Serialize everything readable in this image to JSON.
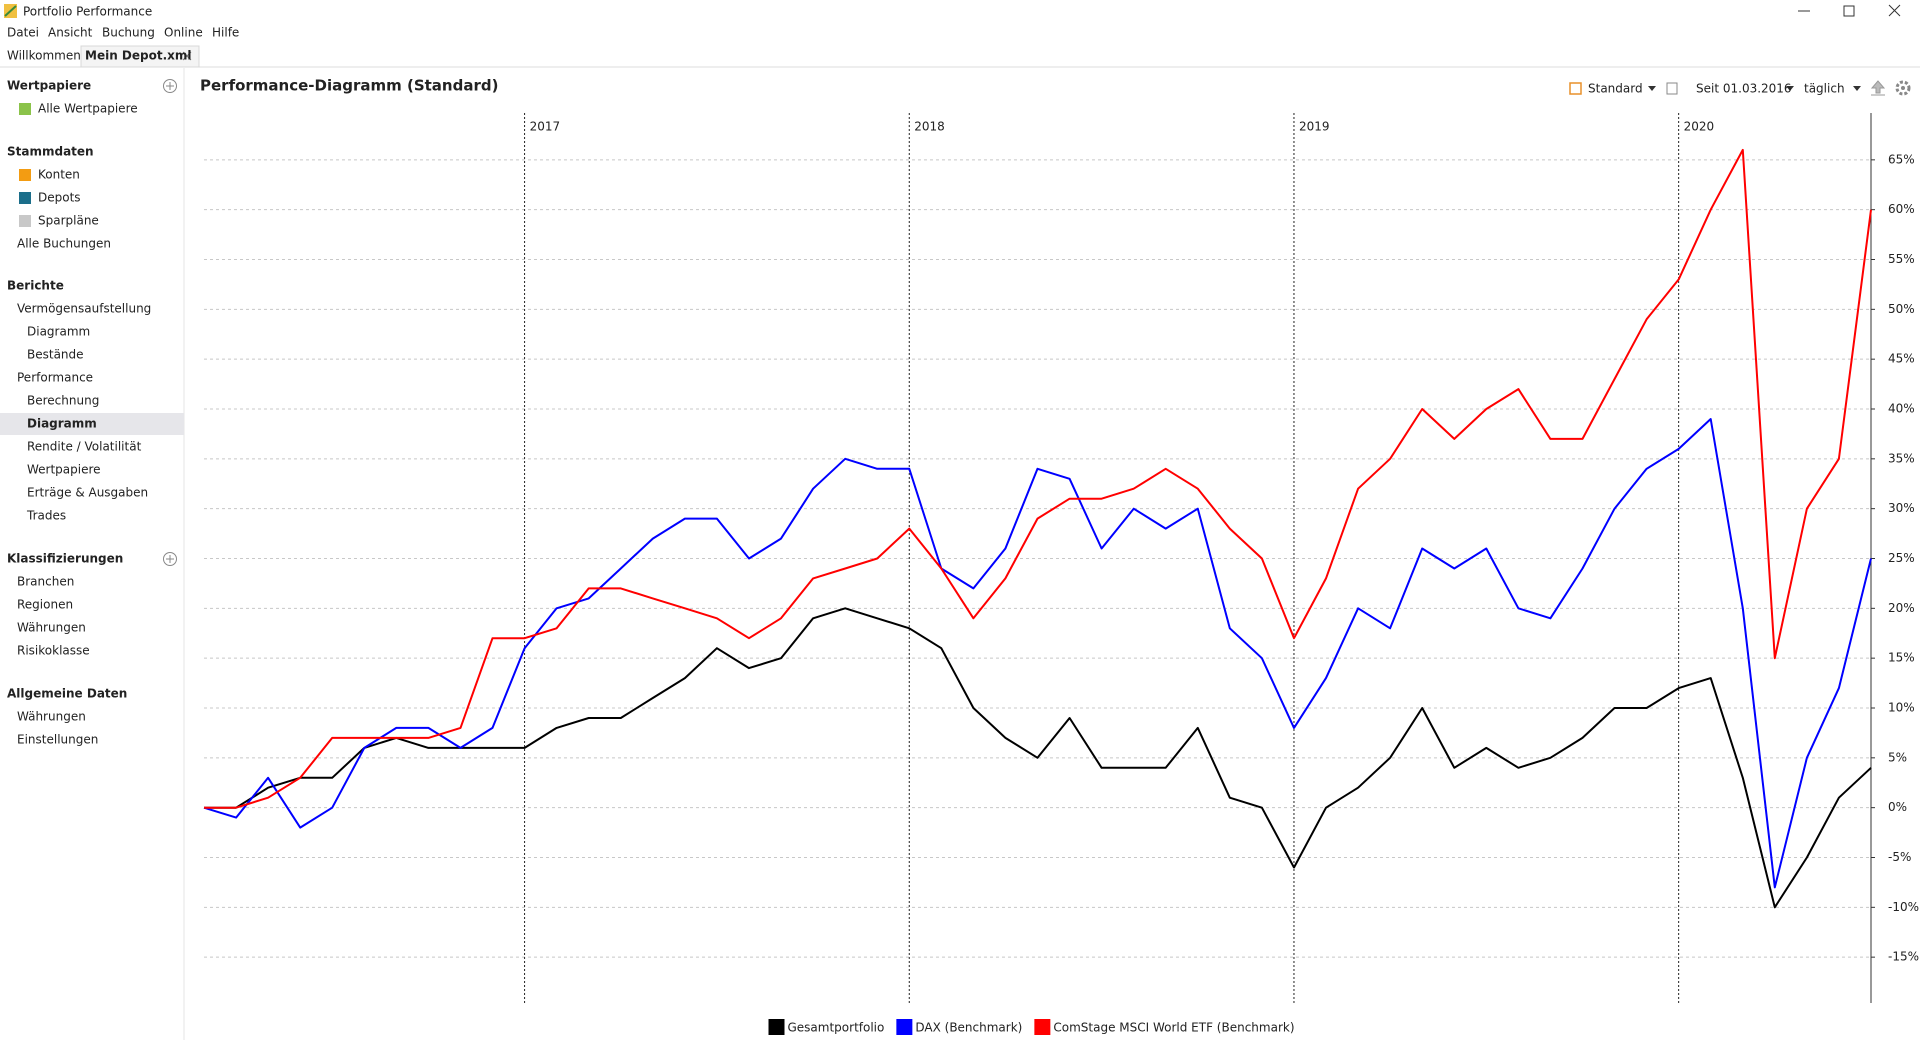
{
  "app": {
    "title": "Portfolio Performance",
    "menu": [
      "Datei",
      "Ansicht",
      "Buchung",
      "Online",
      "Hilfe"
    ],
    "tabs": [
      "Willkommen",
      "Mein Depot.xml"
    ],
    "sidebar": [
      {
        "title": "Wertpapiere",
        "items": [
          "Alle Wertpapiere"
        ]
      },
      {
        "title": "Stammdaten",
        "items": [
          "Konten",
          "Depots",
          "Sparpläne",
          "Alle Buchungen"
        ]
      },
      {
        "title": "Berichte",
        "items": [
          "Vermögensaufstellung",
          "Diagramm",
          "Bestände",
          "Performance",
          "Berechnung",
          "Diagramm",
          "Rendite / Volatilität",
          "Wertpapiere",
          "Erträge & Ausgaben",
          "Trades"
        ]
      },
      {
        "title": "Klassifizierungen",
        "items": [
          "Branchen",
          "Regionen",
          "Währungen",
          "Risikoklasse"
        ]
      },
      {
        "title": "Allgemeine Daten",
        "items": [
          "Währungen",
          "Einstellungen"
        ]
      }
    ],
    "toolbar": [
      "Standard",
      "Seit 01.03.2016",
      "täglich"
    ]
  },
  "chart_data": {
    "type": "line",
    "title": "Performance-Diagramm (Standard)",
    "categories": [
      null,
      null,
      null,
      null,
      null,
      null,
      null,
      null,
      null,
      null,
      "2017",
      null,
      null,
      null,
      null,
      null,
      null,
      null,
      null,
      null,
      null,
      null,
      "2018",
      null,
      null,
      null,
      null,
      null,
      null,
      null,
      null,
      null,
      null,
      null,
      "2019",
      null,
      null,
      null,
      null,
      null,
      null,
      null,
      null,
      null,
      null,
      null,
      "2020",
      null,
      null,
      null,
      null,
      null,
      null
    ],
    "series": [
      {
        "name": "Gesamtportfolio",
        "color": "#000000",
        "values": [
          0,
          0,
          2,
          3,
          3,
          6,
          7,
          6,
          6,
          6,
          6,
          8,
          9,
          9,
          11,
          13,
          16,
          14,
          15,
          19,
          20,
          19,
          18,
          16,
          10,
          7,
          5,
          9,
          4,
          4,
          4,
          8,
          1,
          0,
          -6,
          0,
          2,
          5,
          10,
          4,
          6,
          4,
          5,
          7,
          10,
          10,
          12,
          13,
          3,
          -10,
          -5,
          1,
          4
        ]
      },
      {
        "name": "DAX (Benchmark)",
        "color": "#0000ff",
        "values": [
          0,
          -1,
          3,
          -2,
          0,
          6,
          8,
          8,
          6,
          8,
          16,
          20,
          21,
          24,
          27,
          29,
          29,
          25,
          27,
          32,
          35,
          34,
          34,
          24,
          22,
          26,
          34,
          33,
          26,
          30,
          28,
          30,
          18,
          15,
          8,
          13,
          20,
          18,
          26,
          24,
          26,
          20,
          19,
          24,
          30,
          34,
          36,
          39,
          20,
          -8,
          5,
          12,
          25
        ]
      },
      {
        "name": "ComStage MSCI World ETF (Benchmark)",
        "color": "#ff0000",
        "values": [
          0,
          0,
          1,
          3,
          7,
          7,
          7,
          7,
          8,
          17,
          17,
          18,
          22,
          22,
          21,
          20,
          19,
          17,
          19,
          23,
          24,
          25,
          28,
          24,
          19,
          23,
          29,
          31,
          31,
          32,
          34,
          32,
          28,
          25,
          17,
          23,
          32,
          35,
          40,
          37,
          40,
          42,
          37,
          37,
          43,
          49,
          53,
          60,
          66,
          15,
          30,
          35,
          60
        ]
      }
    ],
    "ylim": [
      -19.6,
      69.7
    ],
    "yticks": [
      {
        "value": -15,
        "label": "-15%"
      },
      {
        "value": -10,
        "label": "-10%"
      },
      {
        "value": -5,
        "label": "-5%"
      },
      {
        "value": 0,
        "label": "0%"
      },
      {
        "value": 5,
        "label": "5%"
      },
      {
        "value": 10,
        "label": "10%"
      },
      {
        "value": 15,
        "label": "15%"
      },
      {
        "value": 20,
        "label": "20%"
      },
      {
        "value": 25,
        "label": "25%"
      },
      {
        "value": 30,
        "label": "30%"
      },
      {
        "value": 35,
        "label": "35%"
      },
      {
        "value": 40,
        "label": "40%"
      },
      {
        "value": 45,
        "label": "45%"
      },
      {
        "value": 50,
        "label": "50%"
      },
      {
        "value": 55,
        "label": "55%"
      },
      {
        "value": 60,
        "label": "60%"
      },
      {
        "value": 65,
        "label": "65%"
      }
    ],
    "grid": true,
    "legend": "bottom"
  }
}
